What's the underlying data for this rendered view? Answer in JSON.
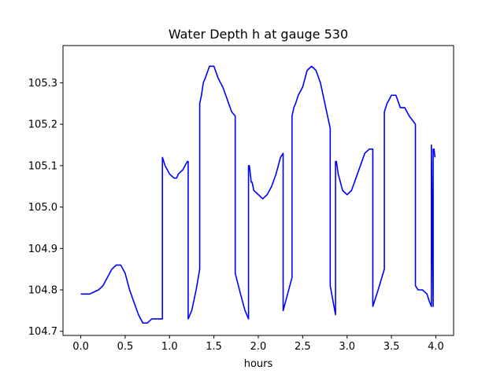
{
  "chart_data": {
    "type": "line",
    "title": "Water Depth h at gauge 530",
    "xlabel": "hours",
    "ylabel": "",
    "xlim": [
      -0.2,
      4.2
    ],
    "ylim": [
      104.69,
      105.39
    ],
    "xticks": [
      0.0,
      0.5,
      1.0,
      1.5,
      2.0,
      2.5,
      3.0,
      3.5,
      4.0
    ],
    "xtick_labels": [
      "0.0",
      "0.5",
      "1.0",
      "1.5",
      "2.0",
      "2.5",
      "3.0",
      "3.5",
      "4.0"
    ],
    "yticks": [
      104.7,
      104.8,
      104.9,
      105.0,
      105.1,
      105.2,
      105.3
    ],
    "ytick_labels": [
      "104.7",
      "104.8",
      "104.9",
      "105.0",
      "105.1",
      "105.2",
      "105.3"
    ],
    "grid": false,
    "series": [
      {
        "color": "#0000ff",
        "x": [
          0.0,
          0.1,
          0.2,
          0.25,
          0.3,
          0.35,
          0.4,
          0.45,
          0.5,
          0.55,
          0.6,
          0.65,
          0.7,
          0.75,
          0.8,
          0.85,
          0.9,
          0.92,
          0.92,
          0.95,
          1.0,
          1.05,
          1.08,
          1.1,
          1.15,
          1.2,
          1.21,
          1.21,
          1.25,
          1.3,
          1.34,
          1.34,
          1.36,
          1.38,
          1.4,
          1.45,
          1.5,
          1.55,
          1.6,
          1.65,
          1.7,
          1.74,
          1.74,
          1.8,
          1.85,
          1.89,
          1.89,
          1.9,
          1.92,
          1.93,
          1.95,
          2.0,
          2.05,
          2.1,
          2.15,
          2.2,
          2.25,
          2.28,
          2.28,
          2.33,
          2.38,
          2.38,
          2.4,
          2.42,
          2.45,
          2.5,
          2.55,
          2.6,
          2.65,
          2.7,
          2.75,
          2.78,
          2.81,
          2.81,
          2.87,
          2.87,
          2.88,
          2.9,
          2.95,
          3.0,
          3.05,
          3.1,
          3.15,
          3.2,
          3.25,
          3.29,
          3.29,
          3.35,
          3.42,
          3.42,
          3.45,
          3.5,
          3.55,
          3.6,
          3.65,
          3.7,
          3.77,
          3.77,
          3.8,
          3.85,
          3.9,
          3.93,
          3.95,
          3.95,
          3.97,
          3.97,
          3.98,
          3.99
        ],
        "y": [
          104.79,
          104.79,
          104.8,
          104.81,
          104.83,
          104.85,
          104.86,
          104.86,
          104.84,
          104.8,
          104.77,
          104.74,
          104.72,
          104.72,
          104.73,
          104.73,
          104.73,
          104.73,
          105.12,
          105.1,
          105.08,
          105.07,
          105.07,
          105.08,
          105.09,
          105.11,
          105.11,
          104.73,
          104.75,
          104.8,
          104.85,
          105.25,
          105.27,
          105.3,
          105.31,
          105.34,
          105.34,
          105.31,
          105.29,
          105.26,
          105.23,
          105.22,
          104.84,
          104.79,
          104.75,
          104.73,
          105.1,
          105.1,
          105.06,
          105.06,
          105.04,
          105.03,
          105.02,
          105.03,
          105.05,
          105.08,
          105.12,
          105.13,
          104.75,
          104.79,
          104.83,
          105.22,
          105.24,
          105.25,
          105.27,
          105.29,
          105.33,
          105.34,
          105.33,
          105.3,
          105.25,
          105.22,
          105.19,
          104.81,
          104.74,
          105.11,
          105.11,
          105.08,
          105.04,
          105.03,
          105.04,
          105.07,
          105.1,
          105.13,
          105.14,
          105.14,
          104.76,
          104.8,
          104.85,
          105.23,
          105.25,
          105.27,
          105.27,
          105.24,
          105.24,
          105.22,
          105.2,
          104.81,
          104.8,
          104.8,
          104.79,
          104.77,
          104.76,
          105.15,
          104.76,
          105.14,
          105.14,
          105.12
        ]
      }
    ]
  }
}
